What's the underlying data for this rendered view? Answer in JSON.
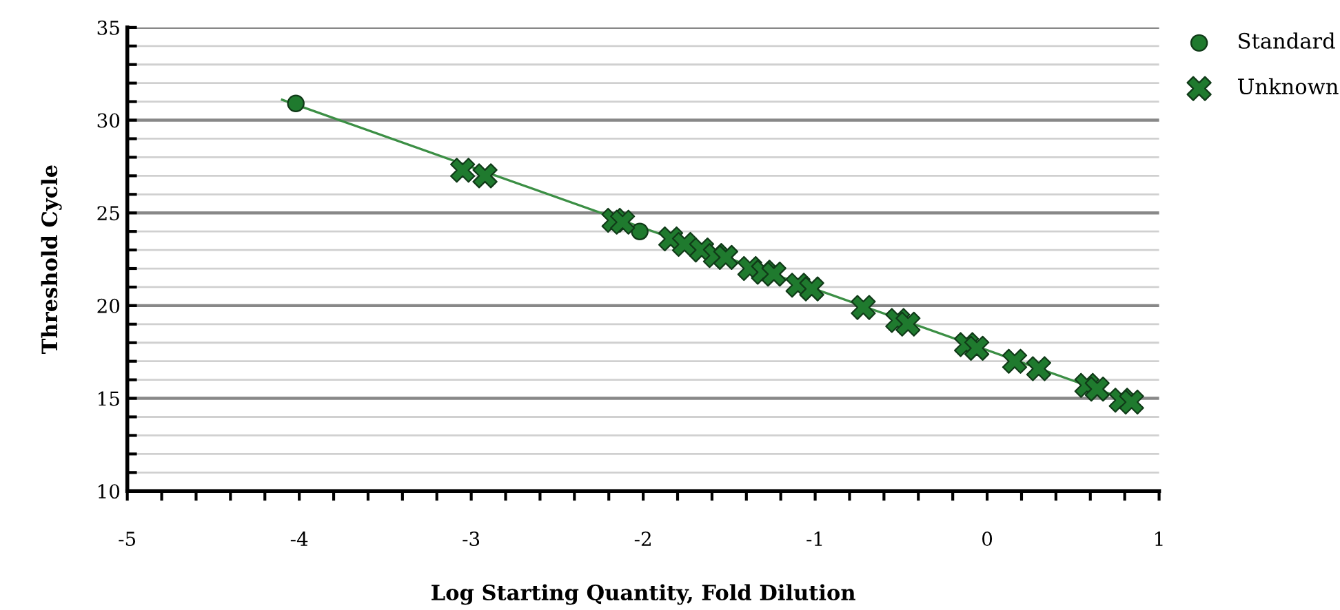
{
  "chart_data": {
    "type": "scatter",
    "xlabel": "Log Starting Quantity, Fold Dilution",
    "ylabel": "Threshold Cycle",
    "xlim": [
      -5,
      1
    ],
    "ylim": [
      10,
      35
    ],
    "xticks": [
      -5,
      {
        "value": -4.8,
        "label": null
      },
      {
        "value": -4.6,
        "label": null
      },
      {
        "value": -4.4,
        "label": null
      },
      {
        "value": -4.2,
        "label": null
      },
      -4,
      {
        "value": -3.8,
        "label": null
      },
      {
        "value": -3.6,
        "label": null
      },
      {
        "value": -3.4,
        "label": null
      },
      {
        "value": -3.2,
        "label": null
      },
      -3,
      {
        "value": -2.8,
        "label": null
      },
      {
        "value": -2.6,
        "label": null
      },
      {
        "value": -2.4,
        "label": null
      },
      {
        "value": -2.2,
        "label": null
      },
      -2,
      {
        "value": -1.8,
        "label": null
      },
      {
        "value": -1.6,
        "label": null
      },
      {
        "value": -1.4,
        "label": null
      },
      {
        "value": -1.2,
        "label": null
      },
      -1,
      {
        "value": -0.8,
        "label": null
      },
      {
        "value": -0.6,
        "label": null
      },
      {
        "value": -0.4,
        "label": null
      },
      {
        "value": -0.2,
        "label": null
      },
      0,
      {
        "value": 0.2,
        "label": null
      },
      {
        "value": 0.4,
        "label": null
      },
      {
        "value": 0.6,
        "label": null
      },
      {
        "value": 0.8,
        "label": null
      },
      1
    ],
    "yticks": [
      10,
      {
        "value": 11,
        "label": null
      },
      {
        "value": 12,
        "label": null
      },
      {
        "value": 13,
        "label": null
      },
      {
        "value": 14,
        "label": null
      },
      15,
      {
        "value": 16,
        "label": null
      },
      {
        "value": 17,
        "label": null
      },
      {
        "value": 18,
        "label": null
      },
      {
        "value": 19,
        "label": null
      },
      20,
      {
        "value": 21,
        "label": null
      },
      {
        "value": 22,
        "label": null
      },
      {
        "value": 23,
        "label": null
      },
      {
        "value": 24,
        "label": null
      },
      25,
      {
        "value": 26,
        "label": null
      },
      {
        "value": 27,
        "label": null
      },
      {
        "value": 28,
        "label": null
      },
      {
        "value": 29,
        "label": null
      },
      30,
      {
        "value": 31,
        "label": null
      },
      {
        "value": 32,
        "label": null
      },
      {
        "value": 33,
        "label": null
      },
      {
        "value": 34,
        "label": null
      },
      35
    ],
    "grid": "y",
    "legend": "top right",
    "series": [
      {
        "type": "line",
        "color": "#3c8f45",
        "marker": "none",
        "x": [
          -4.1,
          0.85
        ],
        "values": [
          31.1,
          14.8
        ]
      },
      {
        "name": "Standard",
        "color": "#1f7a2e",
        "marker": "circle",
        "x": [
          -4.02,
          -2.02
        ],
        "values": [
          30.9,
          24.0
        ]
      },
      {
        "name": "Unknown",
        "color": "#1f7a2e",
        "marker": "cross",
        "x": [
          -3.05,
          -2.92,
          -2.17,
          -2.12,
          -1.84,
          -1.76,
          -1.66,
          -1.58,
          -1.52,
          -1.38,
          -1.3,
          -1.24,
          -1.1,
          -1.02,
          -0.76,
          -0.72,
          -0.52,
          -0.46,
          -0.12,
          -0.06,
          0.16,
          0.3,
          0.58,
          0.64,
          0.78,
          0.84
        ],
        "values": [
          27.3,
          27.0,
          24.6,
          24.5,
          23.6,
          23.3,
          23.0,
          22.7,
          22.6,
          22.0,
          21.8,
          21.7,
          21.1,
          20.9,
          null,
          19.9,
          19.2,
          19.0,
          17.9,
          17.7,
          17.0,
          16.6,
          15.7,
          15.5,
          14.9,
          14.8
        ]
      }
    ]
  }
}
